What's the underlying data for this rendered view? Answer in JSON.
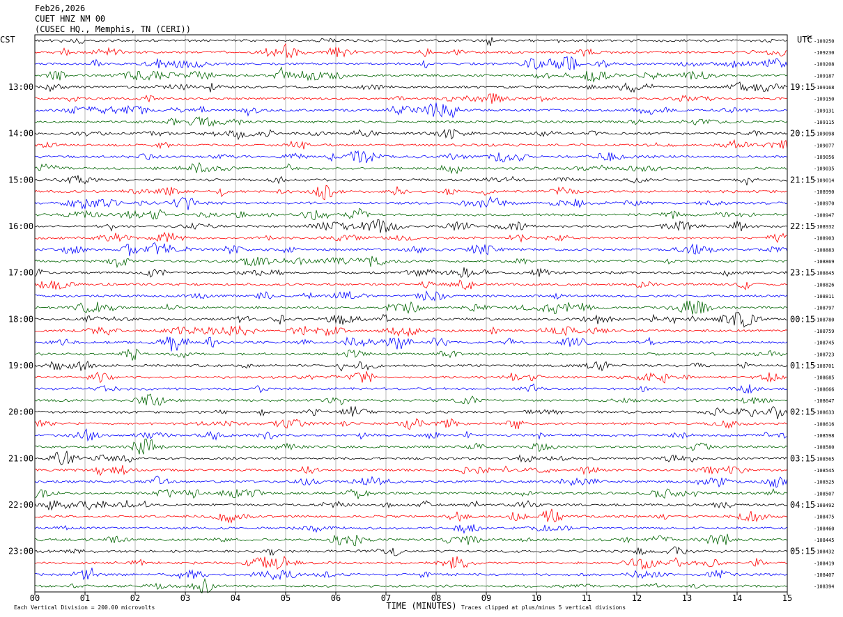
{
  "header": {
    "date": "Feb26,2026",
    "station": "CUET HNZ NM 00",
    "location": "(CUSEC HQ., Memphis, TN (CERI))"
  },
  "labels": {
    "left_tz": "CST",
    "right_tz": "UTC",
    "dc": "DC",
    "xlabel": "TIME (MINUTES)",
    "scale_note": "Each Vertical Division =  200.00 microvolts",
    "clip_note": "Traces clipped at plus/minus 5 vertical divisions"
  },
  "chart_data": {
    "type": "line",
    "title": "CUET HNZ NM 00",
    "xlabel": "TIME (MINUTES)",
    "ylabel": "",
    "xlim": [
      0,
      15
    ],
    "x_ticks": [
      "00",
      "01",
      "02",
      "03",
      "04",
      "05",
      "06",
      "07",
      "08",
      "09",
      "10",
      "11",
      "12",
      "13",
      "14",
      "15"
    ],
    "trace_colors": [
      "#000000",
      "#ff0000",
      "#0000ff",
      "#006400"
    ],
    "trace_minutes": 15,
    "left_hour_labels": [
      "13:00",
      "14:00",
      "15:00",
      "16:00",
      "17:00",
      "18:00",
      "19:00",
      "20:00",
      "21:00",
      "22:00",
      "23:00"
    ],
    "right_hour_labels": [
      "19:15",
      "20:15",
      "21:15",
      "22:15",
      "23:15",
      "00:15",
      "01:15",
      "02:15",
      "03:15",
      "04:15",
      "05:15"
    ],
    "dc_offsets": [
      -109250,
      -109230,
      -109208,
      -109187,
      -109168,
      -109150,
      -109131,
      -109115,
      -109098,
      -109077,
      -109056,
      -109035,
      -109014,
      -108990,
      -108970,
      -108947,
      -108932,
      -108903,
      -108883,
      -108869,
      -108845,
      -108826,
      -108811,
      -108797,
      -108780,
      -108759,
      -108745,
      -108723,
      -108701,
      -108685,
      -108666,
      -108647,
      -108633,
      -108616,
      -108598,
      -108580,
      -108565,
      -108545,
      -108525,
      -108507,
      -108492,
      -108475,
      -108460,
      -108445,
      -108432,
      -108419,
      -108407,
      -108394
    ]
  }
}
